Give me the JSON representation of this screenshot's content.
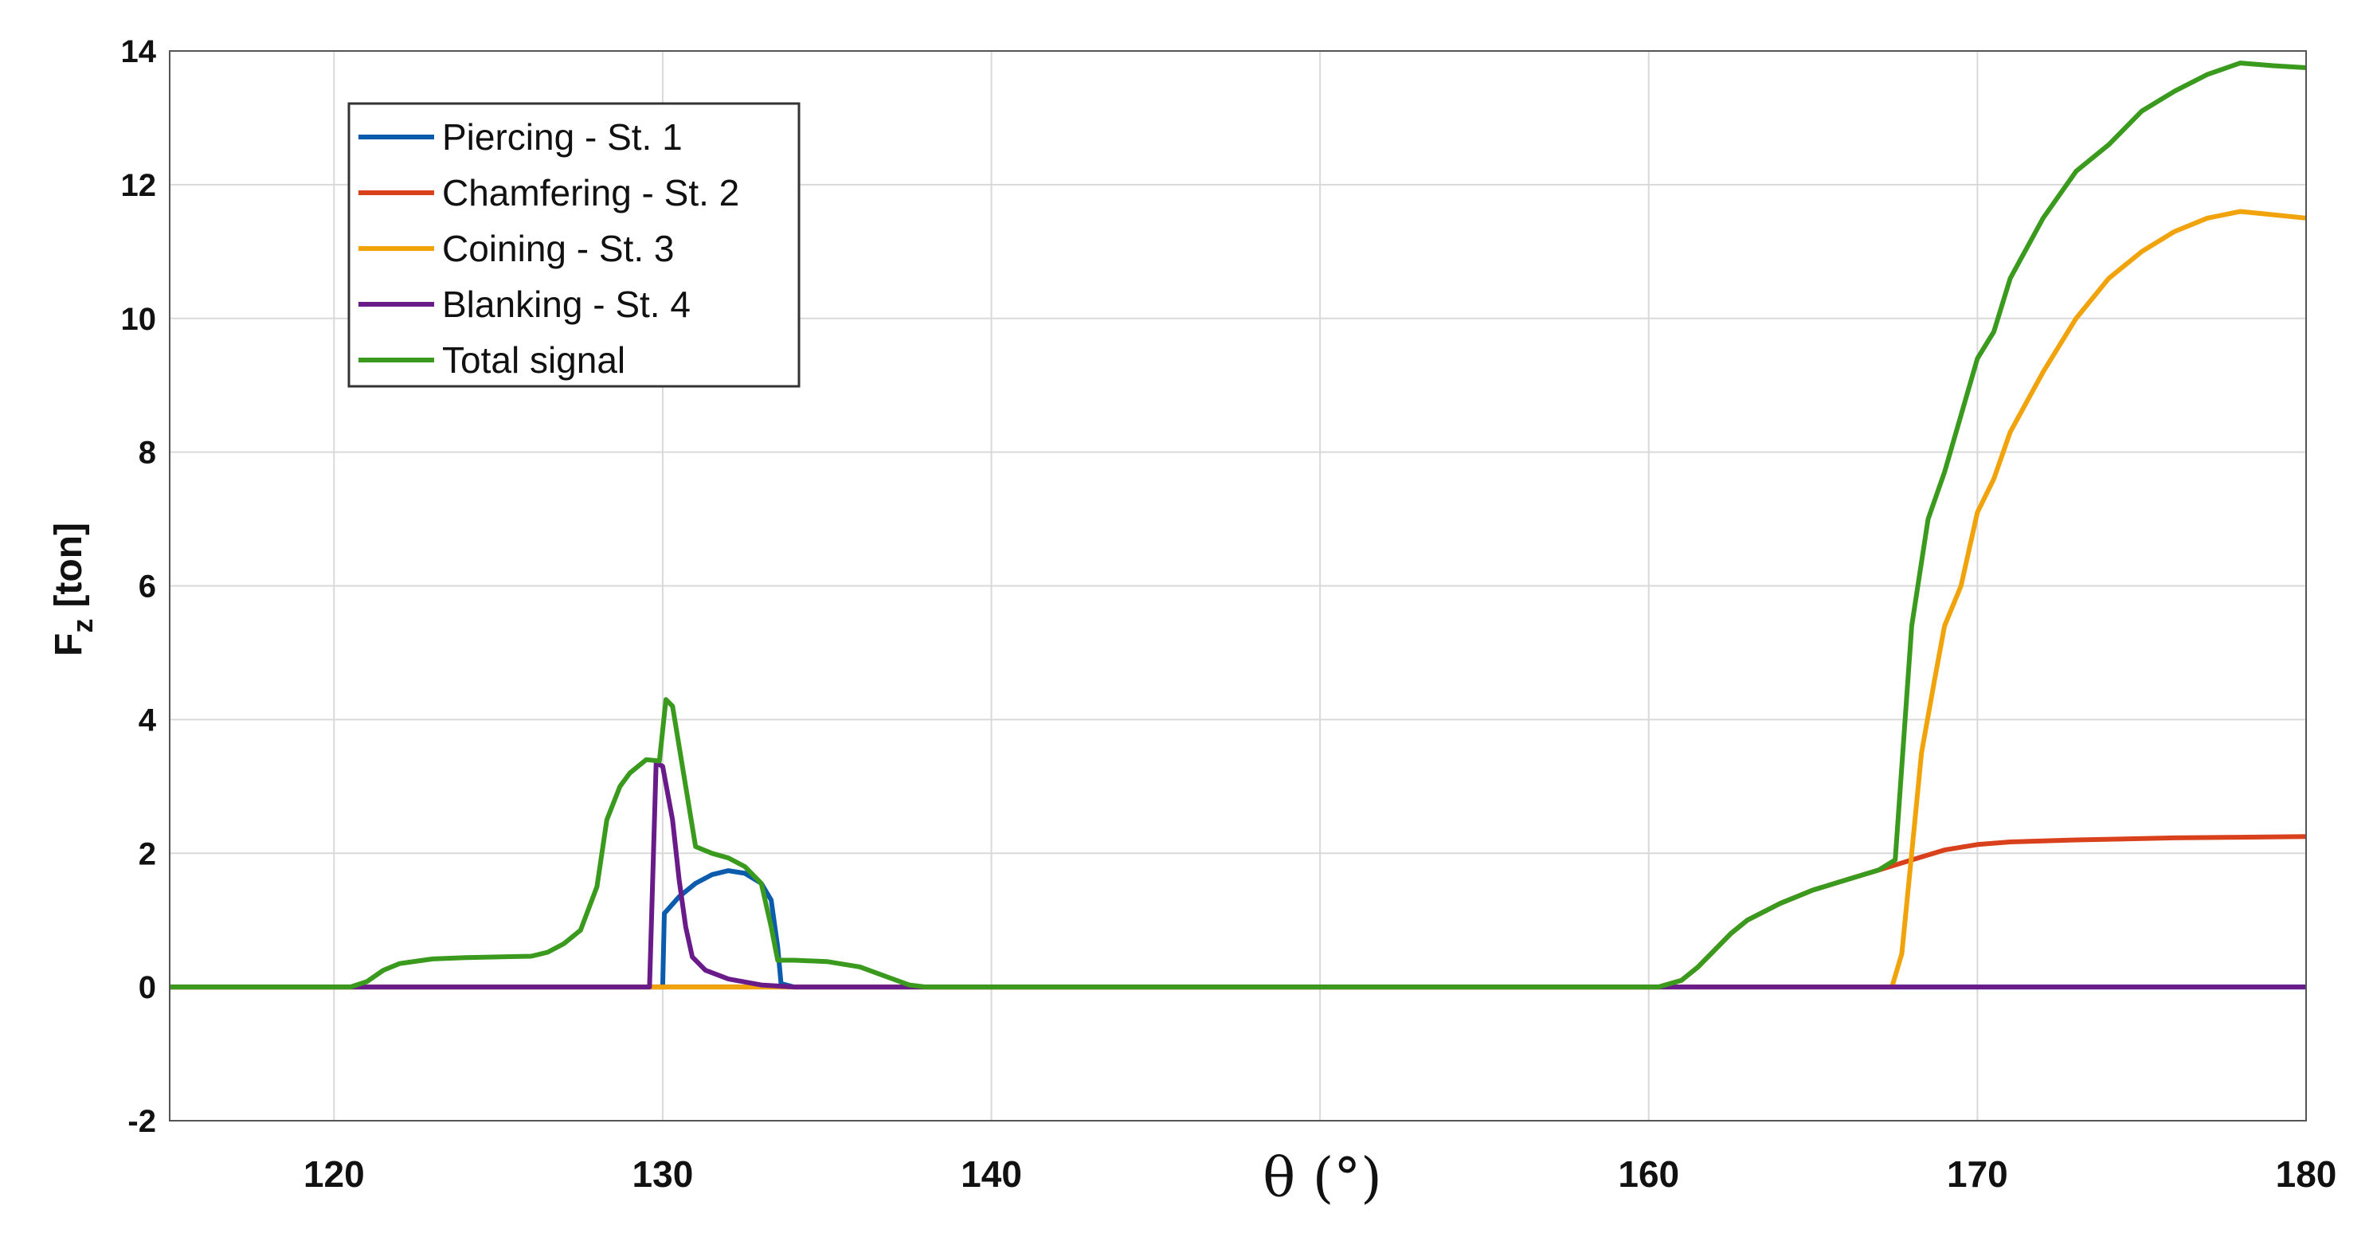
{
  "chart_data": {
    "type": "line",
    "title": "",
    "xlabel": "θ (°)",
    "ylabel": "F",
    "ylabel_subscript": "z",
    "ylabel_unit": "[ton]",
    "xlim": [
      115,
      180
    ],
    "ylim": [
      -2,
      14
    ],
    "xticks": [
      120,
      130,
      140,
      150,
      160,
      170,
      180
    ],
    "xtick_labels": [
      "120",
      "130",
      "140",
      "",
      "160",
      "170",
      "180"
    ],
    "yticks": [
      -2,
      0,
      2,
      4,
      6,
      8,
      10,
      12,
      14
    ],
    "ytick_labels": [
      "-2",
      "0",
      "2",
      "4",
      "6",
      "8",
      "10",
      "12",
      "14"
    ],
    "grid": true,
    "legend_position": "top-left",
    "series": [
      {
        "name": "Piercing - St. 1",
        "color": "#0b5cad",
        "points": [
          [
            115,
            0
          ],
          [
            130,
            0
          ],
          [
            130.05,
            1.1
          ],
          [
            130.5,
            1.35
          ],
          [
            131,
            1.55
          ],
          [
            131.5,
            1.68
          ],
          [
            132,
            1.74
          ],
          [
            132.5,
            1.7
          ],
          [
            133,
            1.55
          ],
          [
            133.3,
            1.3
          ],
          [
            133.5,
            0.6
          ],
          [
            133.6,
            0.05
          ],
          [
            134,
            0
          ],
          [
            180,
            0
          ]
        ]
      },
      {
        "name": "Chamfering - St. 2",
        "color": "#d9401c",
        "points": [
          [
            115,
            0
          ],
          [
            160.3,
            0
          ],
          [
            161,
            0.1
          ],
          [
            161.5,
            0.3
          ],
          [
            162,
            0.55
          ],
          [
            162.5,
            0.8
          ],
          [
            163,
            1.0
          ],
          [
            164,
            1.25
          ],
          [
            165,
            1.45
          ],
          [
            166,
            1.6
          ],
          [
            167,
            1.75
          ],
          [
            168,
            1.9
          ],
          [
            169,
            2.05
          ],
          [
            170,
            2.13
          ],
          [
            171,
            2.17
          ],
          [
            173,
            2.2
          ],
          [
            176,
            2.23
          ],
          [
            178,
            2.24
          ],
          [
            180,
            2.25
          ]
        ]
      },
      {
        "name": "Coining - St. 3",
        "color": "#f0a30a",
        "points": [
          [
            115,
            0
          ],
          [
            167.4,
            0
          ],
          [
            167.7,
            0.5
          ],
          [
            168,
            2.0
          ],
          [
            168.3,
            3.5
          ],
          [
            168.7,
            4.6
          ],
          [
            169,
            5.4
          ],
          [
            169.5,
            6.0
          ],
          [
            170,
            7.1
          ],
          [
            170.5,
            7.6
          ],
          [
            171,
            8.3
          ],
          [
            172,
            9.2
          ],
          [
            173,
            10.0
          ],
          [
            174,
            10.6
          ],
          [
            175,
            11.0
          ],
          [
            176,
            11.3
          ],
          [
            177,
            11.5
          ],
          [
            178,
            11.6
          ],
          [
            179,
            11.55
          ],
          [
            180,
            11.5
          ]
        ]
      },
      {
        "name": "Blanking - St. 4",
        "color": "#6a1b8a",
        "points": [
          [
            115,
            0
          ],
          [
            129.6,
            0
          ],
          [
            129.8,
            3.35
          ],
          [
            130,
            3.3
          ],
          [
            130.3,
            2.5
          ],
          [
            130.5,
            1.6
          ],
          [
            130.7,
            0.9
          ],
          [
            130.9,
            0.45
          ],
          [
            131.3,
            0.25
          ],
          [
            132,
            0.12
          ],
          [
            133,
            0.03
          ],
          [
            134,
            0
          ],
          [
            180,
            0
          ]
        ]
      },
      {
        "name": "Total signal",
        "color": "#3a9a1d",
        "points": [
          [
            115,
            0
          ],
          [
            120.5,
            0
          ],
          [
            121,
            0.08
          ],
          [
            121.5,
            0.25
          ],
          [
            122,
            0.35
          ],
          [
            123,
            0.42
          ],
          [
            124,
            0.44
          ],
          [
            126,
            0.46
          ],
          [
            126.5,
            0.52
          ],
          [
            127,
            0.65
          ],
          [
            127.5,
            0.85
          ],
          [
            128,
            1.5
          ],
          [
            128.3,
            2.5
          ],
          [
            128.7,
            3.0
          ],
          [
            129,
            3.2
          ],
          [
            129.5,
            3.4
          ],
          [
            129.9,
            3.38
          ],
          [
            130.1,
            4.3
          ],
          [
            130.3,
            4.2
          ],
          [
            130.6,
            3.3
          ],
          [
            131,
            2.1
          ],
          [
            131.5,
            2.0
          ],
          [
            132,
            1.93
          ],
          [
            132.5,
            1.8
          ],
          [
            133,
            1.55
          ],
          [
            133.3,
            0.9
          ],
          [
            133.5,
            0.4
          ],
          [
            134,
            0.4
          ],
          [
            135,
            0.38
          ],
          [
            136,
            0.3
          ],
          [
            137,
            0.12
          ],
          [
            137.5,
            0.03
          ],
          [
            138,
            0
          ],
          [
            160.3,
            0
          ],
          [
            161,
            0.1
          ],
          [
            161.5,
            0.3
          ],
          [
            162,
            0.55
          ],
          [
            162.5,
            0.8
          ],
          [
            163,
            1.0
          ],
          [
            164,
            1.25
          ],
          [
            165,
            1.45
          ],
          [
            166,
            1.6
          ],
          [
            167,
            1.75
          ],
          [
            167.5,
            1.9
          ],
          [
            168,
            5.4
          ],
          [
            168.5,
            7.0
          ],
          [
            169,
            7.7
          ],
          [
            170,
            9.4
          ],
          [
            170.5,
            9.8
          ],
          [
            171,
            10.6
          ],
          [
            172,
            11.5
          ],
          [
            173,
            12.2
          ],
          [
            174,
            12.6
          ],
          [
            175,
            13.1
          ],
          [
            176,
            13.4
          ],
          [
            177,
            13.65
          ],
          [
            178,
            13.82
          ],
          [
            179,
            13.78
          ],
          [
            180,
            13.75
          ]
        ]
      }
    ]
  }
}
